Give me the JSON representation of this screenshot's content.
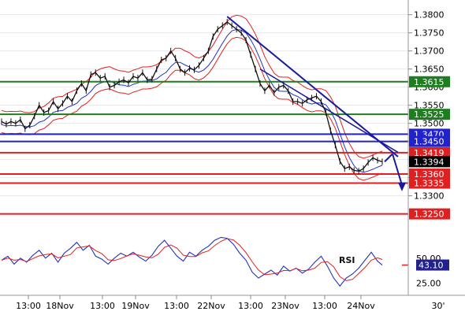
{
  "chart_data": {
    "type": "line",
    "price_axis": {
      "ticks": [
        "1.3800",
        "1.3750",
        "1.3700",
        "1.3650",
        "1.3600",
        "1.3550",
        "1.3500",
        "1.3450",
        "1.3400",
        "1.3350",
        "1.3300"
      ],
      "ylim": [
        1.321,
        1.3808
      ]
    },
    "x_ticks": [
      "13:00",
      "18Nov",
      "13:00",
      "19Nov",
      "13:00",
      "22Nov",
      "13:00",
      "23Nov",
      "13:00",
      "24Nov",
      "30'"
    ],
    "levels": [
      {
        "value": 1.3615,
        "label": "1.3615",
        "color": "#1e7d1e"
      },
      {
        "value": 1.3525,
        "label": "1.3525",
        "color": "#1e7d1e"
      },
      {
        "value": 1.347,
        "label": "1.3470",
        "color": "#2222cc"
      },
      {
        "value": 1.345,
        "label": "1.3450",
        "color": "#2222cc"
      },
      {
        "value": 1.3419,
        "label": "1.3419",
        "color": "#e02020"
      },
      {
        "value": 1.3394,
        "label": "1.3394",
        "color": "#000000"
      },
      {
        "value": 1.336,
        "label": "1.3360",
        "color": "#e02020"
      },
      {
        "value": 1.3335,
        "label": "1.3335",
        "color": "#e02020"
      },
      {
        "value": 1.325,
        "label": "1.3250",
        "color": "#e02020"
      }
    ],
    "price_series": [
      {
        "t": 0,
        "v": 1.3505
      },
      {
        "t": 6,
        "v": 1.3498
      },
      {
        "t": 12,
        "v": 1.3505
      },
      {
        "t": 18,
        "v": 1.35
      },
      {
        "t": 24,
        "v": 1.351
      },
      {
        "t": 30,
        "v": 1.3485
      },
      {
        "t": 36,
        "v": 1.3495
      },
      {
        "t": 42,
        "v": 1.352
      },
      {
        "t": 48,
        "v": 1.355
      },
      {
        "t": 54,
        "v": 1.353
      },
      {
        "t": 60,
        "v": 1.3535
      },
      {
        "t": 66,
        "v": 1.356
      },
      {
        "t": 72,
        "v": 1.354
      },
      {
        "t": 78,
        "v": 1.3555
      },
      {
        "t": 84,
        "v": 1.3575
      },
      {
        "t": 90,
        "v": 1.356
      },
      {
        "t": 96,
        "v": 1.359
      },
      {
        "t": 102,
        "v": 1.361
      },
      {
        "t": 108,
        "v": 1.359
      },
      {
        "t": 114,
        "v": 1.3635
      },
      {
        "t": 120,
        "v": 1.364
      },
      {
        "t": 126,
        "v": 1.3625
      },
      {
        "t": 132,
        "v": 1.363
      },
      {
        "t": 138,
        "v": 1.36
      },
      {
        "t": 144,
        "v": 1.3605
      },
      {
        "t": 150,
        "v": 1.3615
      },
      {
        "t": 156,
        "v": 1.362
      },
      {
        "t": 162,
        "v": 1.3612
      },
      {
        "t": 168,
        "v": 1.363
      },
      {
        "t": 174,
        "v": 1.3625
      },
      {
        "t": 180,
        "v": 1.364
      },
      {
        "t": 186,
        "v": 1.362
      },
      {
        "t": 192,
        "v": 1.3622
      },
      {
        "t": 198,
        "v": 1.365
      },
      {
        "t": 204,
        "v": 1.3675
      },
      {
        "t": 210,
        "v": 1.368
      },
      {
        "t": 216,
        "v": 1.37
      },
      {
        "t": 222,
        "v": 1.368
      },
      {
        "t": 228,
        "v": 1.365
      },
      {
        "t": 234,
        "v": 1.364
      },
      {
        "t": 240,
        "v": 1.3652
      },
      {
        "t": 246,
        "v": 1.3648
      },
      {
        "t": 252,
        "v": 1.366
      },
      {
        "t": 258,
        "v": 1.368
      },
      {
        "t": 264,
        "v": 1.37
      },
      {
        "t": 270,
        "v": 1.374
      },
      {
        "t": 276,
        "v": 1.376
      },
      {
        "t": 282,
        "v": 1.377
      },
      {
        "t": 288,
        "v": 1.378
      },
      {
        "t": 294,
        "v": 1.377
      },
      {
        "t": 300,
        "v": 1.376
      },
      {
        "t": 306,
        "v": 1.375
      },
      {
        "t": 312,
        "v": 1.373
      },
      {
        "t": 318,
        "v": 1.369
      },
      {
        "t": 324,
        "v": 1.365
      },
      {
        "t": 330,
        "v": 1.361
      },
      {
        "t": 336,
        "v": 1.359
      },
      {
        "t": 342,
        "v": 1.3605
      },
      {
        "t": 348,
        "v": 1.3585
      },
      {
        "t": 354,
        "v": 1.36
      },
      {
        "t": 360,
        "v": 1.3605
      },
      {
        "t": 366,
        "v": 1.359
      },
      {
        "t": 372,
        "v": 1.356
      },
      {
        "t": 378,
        "v": 1.356
      },
      {
        "t": 384,
        "v": 1.3555
      },
      {
        "t": 390,
        "v": 1.3565
      },
      {
        "t": 396,
        "v": 1.357
      },
      {
        "t": 402,
        "v": 1.3575
      },
      {
        "t": 408,
        "v": 1.356
      },
      {
        "t": 414,
        "v": 1.353
      },
      {
        "t": 420,
        "v": 1.348
      },
      {
        "t": 426,
        "v": 1.344
      },
      {
        "t": 432,
        "v": 1.3395
      },
      {
        "t": 438,
        "v": 1.3375
      },
      {
        "t": 444,
        "v": 1.338
      },
      {
        "t": 450,
        "v": 1.337
      },
      {
        "t": 456,
        "v": 1.3368
      },
      {
        "t": 462,
        "v": 1.3375
      },
      {
        "t": 468,
        "v": 1.3392
      },
      {
        "t": 474,
        "v": 1.3405
      },
      {
        "t": 480,
        "v": 1.3398
      },
      {
        "t": 486,
        "v": 1.3394
      }
    ],
    "rsi_axis": {
      "ticks": [
        "50.00",
        "25.00"
      ],
      "ylim": [
        15,
        80
      ],
      "current": "43.10",
      "label": "RSI"
    },
    "rsi_series": [
      {
        "t": 0,
        "v": 48
      },
      {
        "t": 8,
        "v": 52
      },
      {
        "t": 16,
        "v": 44
      },
      {
        "t": 24,
        "v": 50
      },
      {
        "t": 32,
        "v": 46
      },
      {
        "t": 40,
        "v": 53
      },
      {
        "t": 48,
        "v": 58
      },
      {
        "t": 56,
        "v": 50
      },
      {
        "t": 64,
        "v": 55
      },
      {
        "t": 72,
        "v": 46
      },
      {
        "t": 80,
        "v": 55
      },
      {
        "t": 88,
        "v": 60
      },
      {
        "t": 96,
        "v": 66
      },
      {
        "t": 104,
        "v": 58
      },
      {
        "t": 112,
        "v": 63
      },
      {
        "t": 120,
        "v": 52
      },
      {
        "t": 128,
        "v": 49
      },
      {
        "t": 136,
        "v": 44
      },
      {
        "t": 144,
        "v": 50
      },
      {
        "t": 152,
        "v": 55
      },
      {
        "t": 160,
        "v": 52
      },
      {
        "t": 168,
        "v": 56
      },
      {
        "t": 176,
        "v": 51
      },
      {
        "t": 184,
        "v": 47
      },
      {
        "t": 192,
        "v": 53
      },
      {
        "t": 200,
        "v": 62
      },
      {
        "t": 208,
        "v": 68
      },
      {
        "t": 216,
        "v": 60
      },
      {
        "t": 224,
        "v": 52
      },
      {
        "t": 232,
        "v": 47
      },
      {
        "t": 240,
        "v": 56
      },
      {
        "t": 248,
        "v": 52
      },
      {
        "t": 256,
        "v": 58
      },
      {
        "t": 264,
        "v": 62
      },
      {
        "t": 272,
        "v": 68
      },
      {
        "t": 280,
        "v": 71
      },
      {
        "t": 288,
        "v": 70
      },
      {
        "t": 296,
        "v": 64
      },
      {
        "t": 304,
        "v": 55
      },
      {
        "t": 312,
        "v": 48
      },
      {
        "t": 320,
        "v": 36
      },
      {
        "t": 328,
        "v": 30
      },
      {
        "t": 336,
        "v": 34
      },
      {
        "t": 344,
        "v": 38
      },
      {
        "t": 352,
        "v": 33
      },
      {
        "t": 360,
        "v": 42
      },
      {
        "t": 368,
        "v": 37
      },
      {
        "t": 376,
        "v": 40
      },
      {
        "t": 384,
        "v": 35
      },
      {
        "t": 392,
        "v": 39
      },
      {
        "t": 400,
        "v": 46
      },
      {
        "t": 408,
        "v": 52
      },
      {
        "t": 416,
        "v": 42
      },
      {
        "t": 424,
        "v": 30
      },
      {
        "t": 432,
        "v": 22
      },
      {
        "t": 440,
        "v": 30
      },
      {
        "t": 448,
        "v": 34
      },
      {
        "t": 456,
        "v": 40
      },
      {
        "t": 464,
        "v": 48
      },
      {
        "t": 472,
        "v": 56
      },
      {
        "t": 480,
        "v": 47
      },
      {
        "t": 486,
        "v": 43.1
      }
    ]
  }
}
